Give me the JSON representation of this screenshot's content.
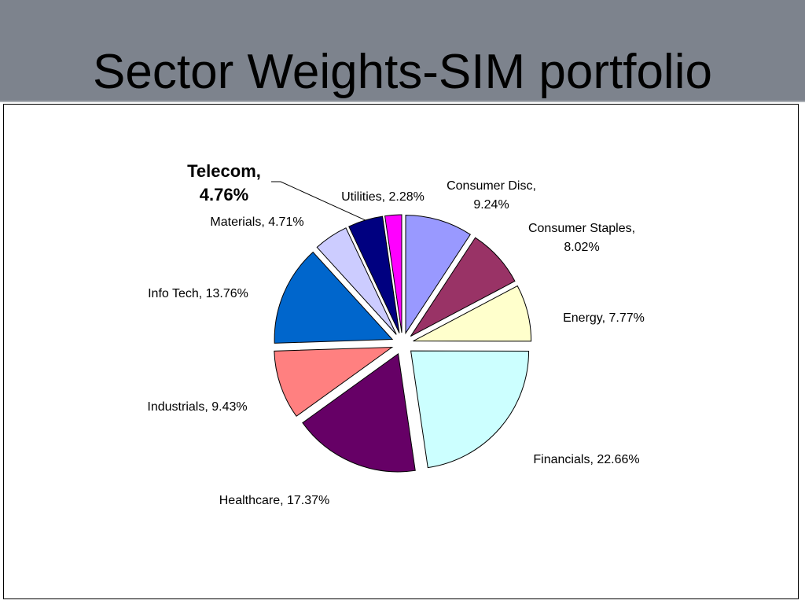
{
  "slide": {
    "title": "Sector Weights-SIM portfolio"
  },
  "colors": {
    "title_band": "#7d838d",
    "frame_border": "#000000"
  },
  "chart_data": {
    "type": "pie",
    "title": "",
    "exploded": true,
    "legend": "none",
    "series": [
      {
        "values": [
          9.24,
          8.02,
          7.77,
          22.66,
          17.37,
          9.43,
          13.76,
          4.71,
          4.76,
          2.28
        ],
        "categories": [
          "Consumer Disc",
          "Consumer Staples",
          "Energy",
          "Financials",
          "Healthcare",
          "Industrials",
          "Info Tech",
          "Materials",
          "Telecom",
          "Utilities"
        ]
      }
    ],
    "slices": [
      {
        "category": "Consumer Disc",
        "value": 9.24,
        "label_line1": "Consumer Disc,",
        "label_line2": "9.24%",
        "color": "#9999ff"
      },
      {
        "category": "Consumer Staples",
        "value": 8.02,
        "label_line1": "Consumer Staples,",
        "label_line2": "8.02%",
        "color": "#993366"
      },
      {
        "category": "Energy",
        "value": 7.77,
        "label_line1": "Energy, 7.77%",
        "label_line2": "",
        "color": "#ffffcc"
      },
      {
        "category": "Financials",
        "value": 22.66,
        "label_line1": "Financials, 22.66%",
        "label_line2": "",
        "color": "#ccffff"
      },
      {
        "category": "Healthcare",
        "value": 17.37,
        "label_line1": "Healthcare, 17.37%",
        "label_line2": "",
        "color": "#660066"
      },
      {
        "category": "Industrials",
        "value": 9.43,
        "label_line1": "Industrials, 9.43%",
        "label_line2": "",
        "color": "#ff8080"
      },
      {
        "category": "Info Tech",
        "value": 13.76,
        "label_line1": "Info Tech, 13.76%",
        "label_line2": "",
        "color": "#0066cc"
      },
      {
        "category": "Materials",
        "value": 4.71,
        "label_line1": "Materials, 4.71%",
        "label_line2": "",
        "color": "#ccccff"
      },
      {
        "category": "Telecom",
        "value": 4.76,
        "label_line1": "Telecom,",
        "label_line2": "4.76%",
        "color": "#000080",
        "label_bold": true
      },
      {
        "category": "Utilities",
        "value": 2.28,
        "label_line1": "Utilities, 2.28%",
        "label_line2": "",
        "color": "#ff00ff"
      }
    ]
  }
}
